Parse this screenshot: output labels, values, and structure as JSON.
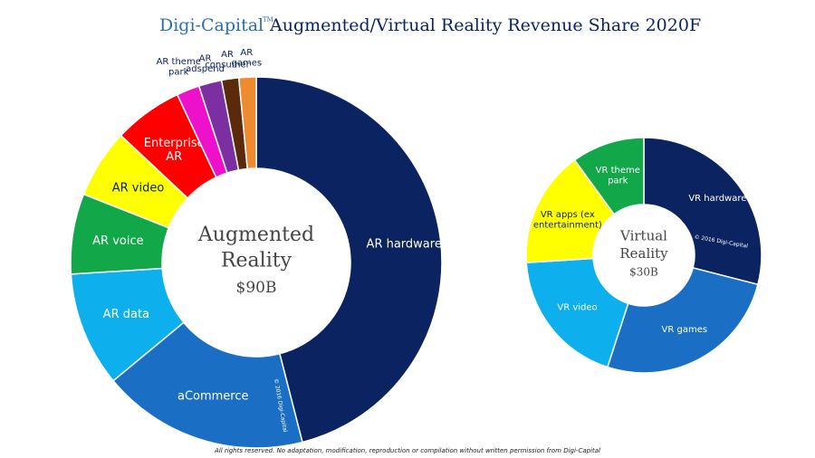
{
  "header": {
    "logo": "Digi-Capital",
    "logo_mark": "TM",
    "title": "Augmented/Virtual Reality Revenue Share 2020F"
  },
  "footer": "All rights reserved. No adaptation, modification, reproduction or compilation without written permission from Digi-Capital",
  "chart_data": [
    {
      "type": "pie",
      "donut": true,
      "center_label": [
        "Augmented",
        "Reality"
      ],
      "total": "$90B",
      "copyright": "© 2016 Digi-Capital",
      "categories": [
        "AR hardware",
        "aCommerce",
        "AR data",
        "AR voice",
        "AR video",
        "Enterprise\nAR",
        "AR theme\npark",
        "AR\nadspend",
        "AR\nconsumer",
        "AR\ngames"
      ],
      "values": [
        46,
        18,
        10,
        7,
        6,
        6,
        2,
        2,
        1.5,
        1.5
      ],
      "colors": [
        "#0b2461",
        "#1a6fc4",
        "#0db0ec",
        "#12a84a",
        "#ffff00",
        "#ff0000",
        "#ee11cc",
        "#7b2fa0",
        "#5a2a0a",
        "#f08a30"
      ]
    },
    {
      "type": "pie",
      "donut": true,
      "center_label": [
        "Virtual",
        "Reality"
      ],
      "total": "$30B",
      "copyright": "© 2016 Digi-Capital",
      "categories": [
        "VR hardware",
        "VR games",
        "VR video",
        "VR apps (ex\nentertainment)",
        "VR theme\npark"
      ],
      "values": [
        29,
        26,
        19,
        16,
        10
      ],
      "colors": [
        "#0b2461",
        "#1a6fc4",
        "#0db0ec",
        "#ffff00",
        "#12a84a"
      ]
    }
  ]
}
